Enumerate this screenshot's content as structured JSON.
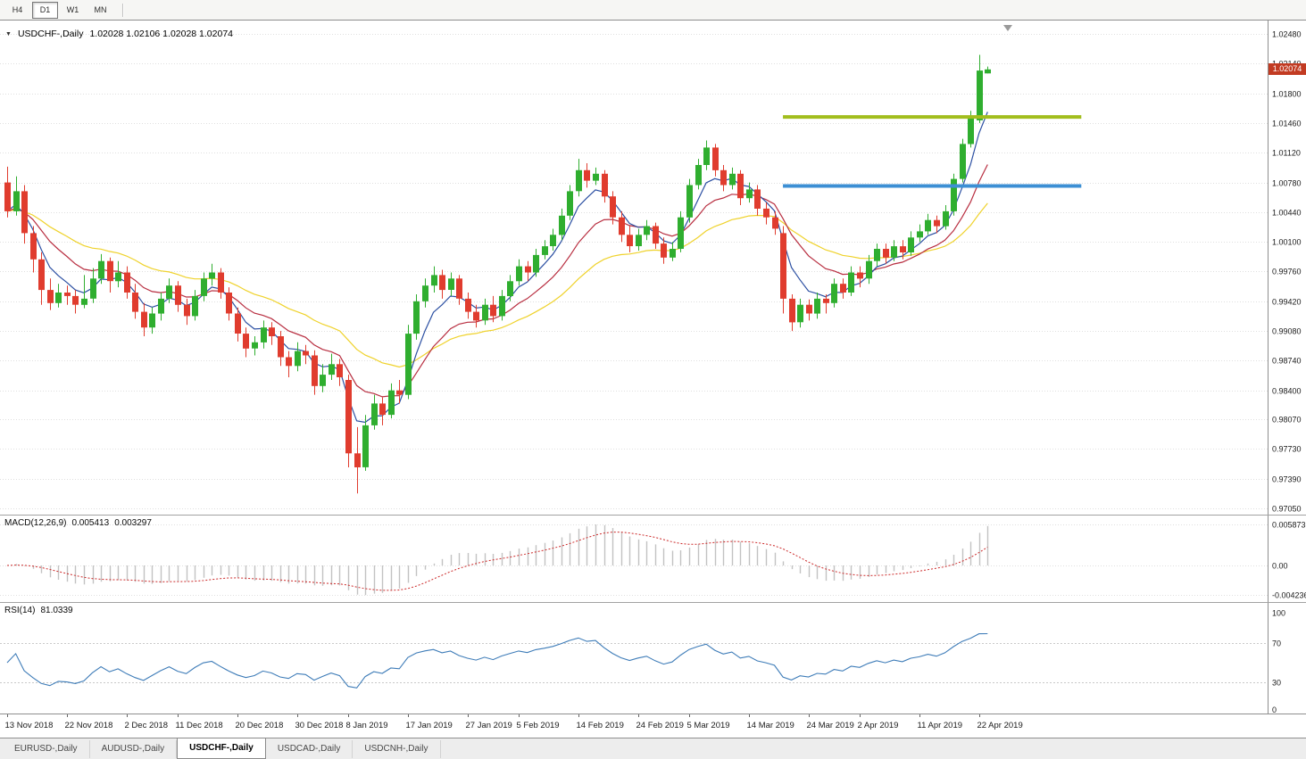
{
  "toolbar": {
    "timeframes": [
      {
        "label": "H4",
        "active": false
      },
      {
        "label": "D1",
        "active": true
      },
      {
        "label": "W1",
        "active": false
      },
      {
        "label": "MN",
        "active": false
      }
    ]
  },
  "chart": {
    "symbol_title": "USDCHF-,Daily",
    "ohlc_text": "1.02028 1.02106 1.02028 1.02074",
    "price_tag": "1.02074"
  },
  "macd": {
    "label": "MACD(12,26,9)",
    "main_value": "0.005413",
    "signal_value": "0.003297",
    "axis": [
      "0.005873",
      "0.00",
      "-0.004236"
    ]
  },
  "rsi": {
    "label": "RSI(14)",
    "value": "81.0339",
    "axis": [
      "100",
      "70",
      "30",
      "0"
    ],
    "levels": [
      70,
      30
    ]
  },
  "tabs": [
    {
      "label": "EURUSD-,Daily",
      "active": false
    },
    {
      "label": "AUDUSD-,Daily",
      "active": false
    },
    {
      "label": "USDCHF-,Daily",
      "active": true
    },
    {
      "label": "USDCAD-,Daily",
      "active": false
    },
    {
      "label": "USDCNH-,Daily",
      "active": false
    }
  ],
  "palette": {
    "up_candle": "#2FAE2F",
    "down_candle": "#E03C2E",
    "grid": "#DFDFDF",
    "axis_text": "#1A1A1A",
    "macd_bar": "#C2C2C2",
    "macd_signal": "#CC2A2A",
    "rsi_line": "#3E7CB8",
    "price_tag_bg": "#C23B22"
  },
  "chart_data": {
    "type": "candlestick",
    "symbol": "USDCHF-",
    "timeframe": "Daily",
    "last_ohlc": {
      "open": 1.02028,
      "high": 1.02106,
      "low": 1.02028,
      "close": 1.02074
    },
    "price_axis_ticks": [
      "1.02480",
      "1.02140",
      "1.01800",
      "1.01460",
      "1.01120",
      "1.00780",
      "1.00440",
      "1.00100",
      "0.99760",
      "0.99420",
      "0.99080",
      "0.98740",
      "0.98400",
      "0.98070",
      "0.97730",
      "0.97390",
      "0.97050"
    ],
    "date_ticks": [
      [
        0,
        "13 Nov 2018"
      ],
      [
        7,
        "22 Nov 2018"
      ],
      [
        14,
        "2 Dec 2018"
      ],
      [
        20,
        "11 Dec 2018"
      ],
      [
        27,
        "20 Dec 2018"
      ],
      [
        34,
        "30 Dec 2018"
      ],
      [
        40,
        "8 Jan 2019"
      ],
      [
        47,
        "17 Jan 2019"
      ],
      [
        54,
        "27 Jan 2019"
      ],
      [
        60,
        "5 Feb 2019"
      ],
      [
        67,
        "14 Feb 2019"
      ],
      [
        74,
        "24 Feb 2019"
      ],
      [
        80,
        "5 Mar 2019"
      ],
      [
        87,
        "14 Mar 2019"
      ],
      [
        94,
        "24 Mar 2019"
      ],
      [
        100,
        "2 Apr 2019"
      ],
      [
        107,
        "11 Apr 2019"
      ],
      [
        114,
        "22 Apr 2019"
      ]
    ],
    "horizontal_lines": [
      {
        "name": "resistance-hline",
        "price": 1.0153,
        "color": "#A2BE1E",
        "from_index": 91,
        "to_index": 126
      },
      {
        "name": "support-hline",
        "price": 1.0074,
        "color": "#3C8FD4",
        "from_index": 91,
        "to_index": 126
      }
    ],
    "moving_averages": [
      {
        "period": 5,
        "type": "EMA",
        "color": "#2B4FA2"
      },
      {
        "period": 12,
        "type": "EMA",
        "color": "#B82E40"
      },
      {
        "period": 26,
        "type": "EMA",
        "color": "#EFD22B"
      }
    ],
    "candles": [
      [
        1.0078,
        1.0096,
        1.0038,
        1.0045
      ],
      [
        1.0045,
        1.0085,
        1.004,
        1.0068
      ],
      [
        1.0068,
        1.0075,
        1.0008,
        1.002
      ],
      [
        1.002,
        1.0028,
        0.9975,
        0.999
      ],
      [
        0.999,
        0.9998,
        0.9938,
        0.9955
      ],
      [
        0.9955,
        0.9968,
        0.9932,
        0.994
      ],
      [
        0.994,
        0.9962,
        0.9935,
        0.9952
      ],
      [
        0.9952,
        0.996,
        0.9938,
        0.9948
      ],
      [
        0.9948,
        0.9955,
        0.9928,
        0.9938
      ],
      [
        0.9938,
        0.9972,
        0.9934,
        0.9945
      ],
      [
        0.9945,
        0.998,
        0.994,
        0.9968
      ],
      [
        0.9968,
        0.9996,
        0.9962,
        0.9988
      ],
      [
        0.9988,
        0.9992,
        0.9952,
        0.9965
      ],
      [
        0.9965,
        0.9988,
        0.9958,
        0.9975
      ],
      [
        0.9975,
        0.9982,
        0.9945,
        0.9952
      ],
      [
        0.9952,
        0.9962,
        0.9922,
        0.993
      ],
      [
        0.993,
        0.994,
        0.9902,
        0.9912
      ],
      [
        0.9912,
        0.9935,
        0.9905,
        0.9928
      ],
      [
        0.9928,
        0.9952,
        0.992,
        0.9945
      ],
      [
        0.9945,
        0.9968,
        0.994,
        0.996
      ],
      [
        0.996,
        0.9965,
        0.993,
        0.9938
      ],
      [
        0.9938,
        0.9945,
        0.9915,
        0.9925
      ],
      [
        0.9925,
        0.9955,
        0.992,
        0.9948
      ],
      [
        0.9948,
        0.9975,
        0.9942,
        0.9968
      ],
      [
        0.9968,
        0.9985,
        0.996,
        0.9975
      ],
      [
        0.9975,
        0.998,
        0.9945,
        0.9952
      ],
      [
        0.9952,
        0.9958,
        0.992,
        0.9928
      ],
      [
        0.9928,
        0.9935,
        0.9896,
        0.9905
      ],
      [
        0.9905,
        0.9912,
        0.9878,
        0.9888
      ],
      [
        0.9888,
        0.9902,
        0.988,
        0.9895
      ],
      [
        0.9895,
        0.992,
        0.9888,
        0.9912
      ],
      [
        0.9912,
        0.9918,
        0.9892,
        0.9902
      ],
      [
        0.9902,
        0.9908,
        0.9868,
        0.9878
      ],
      [
        0.9878,
        0.9885,
        0.9855,
        0.9868
      ],
      [
        0.9868,
        0.9895,
        0.9862,
        0.9885
      ],
      [
        0.9885,
        0.9892,
        0.987,
        0.988
      ],
      [
        0.988,
        0.9886,
        0.9835,
        0.9845
      ],
      [
        0.9845,
        0.987,
        0.9838,
        0.9858
      ],
      [
        0.9858,
        0.9882,
        0.9852,
        0.987
      ],
      [
        0.987,
        0.9876,
        0.9845,
        0.9855
      ],
      [
        0.9852,
        0.9858,
        0.9752,
        0.9768
      ],
      [
        0.9768,
        0.9798,
        0.9722,
        0.9752
      ],
      [
        0.9752,
        0.9812,
        0.9748,
        0.98
      ],
      [
        0.98,
        0.9835,
        0.9795,
        0.9825
      ],
      [
        0.9825,
        0.9832,
        0.98,
        0.9812
      ],
      [
        0.9812,
        0.9848,
        0.9808,
        0.984
      ],
      [
        0.984,
        0.9852,
        0.9825,
        0.9835
      ],
      [
        0.9835,
        0.9915,
        0.983,
        0.9905
      ],
      [
        0.9905,
        0.995,
        0.9898,
        0.9942
      ],
      [
        0.9942,
        0.9968,
        0.9935,
        0.996
      ],
      [
        0.996,
        0.9982,
        0.9952,
        0.9972
      ],
      [
        0.9972,
        0.9978,
        0.9945,
        0.9955
      ],
      [
        0.9955,
        0.9975,
        0.9948,
        0.9968
      ],
      [
        0.9968,
        0.9972,
        0.9938,
        0.9945
      ],
      [
        0.9945,
        0.9952,
        0.9922,
        0.993
      ],
      [
        0.993,
        0.9938,
        0.9912,
        0.992
      ],
      [
        0.992,
        0.9945,
        0.9915,
        0.9938
      ],
      [
        0.9938,
        0.9948,
        0.9918,
        0.9925
      ],
      [
        0.9925,
        0.9955,
        0.992,
        0.9948
      ],
      [
        0.9948,
        0.9972,
        0.9942,
        0.9965
      ],
      [
        0.9965,
        0.999,
        0.996,
        0.9982
      ],
      [
        0.9982,
        0.9988,
        0.9965,
        0.9975
      ],
      [
        0.9975,
        1.0002,
        0.997,
        0.9995
      ],
      [
        0.9995,
        1.0012,
        0.999,
        1.0005
      ],
      [
        1.0005,
        1.0025,
        1.0,
        1.0018
      ],
      [
        1.0018,
        1.0048,
        1.0012,
        1.004
      ],
      [
        1.004,
        1.0075,
        1.0035,
        1.0068
      ],
      [
        1.0068,
        1.0105,
        1.0062,
        1.0092
      ],
      [
        1.0092,
        1.01,
        1.0072,
        1.008
      ],
      [
        1.008,
        1.0095,
        1.0075,
        1.0088
      ],
      [
        1.0088,
        1.0092,
        1.0055,
        1.0062
      ],
      [
        1.0062,
        1.0068,
        1.003,
        1.0038
      ],
      [
        1.0038,
        1.0045,
        1.001,
        1.0018
      ],
      [
        1.0018,
        1.0028,
        0.9998,
        1.0005
      ],
      [
        1.0005,
        1.0025,
        1.0,
        1.0018
      ],
      [
        1.0018,
        1.0035,
        1.0012,
        1.0028
      ],
      [
        1.0028,
        1.0032,
        1.0002,
        1.0008
      ],
      [
        1.0008,
        1.0015,
        0.9985,
        0.9992
      ],
      [
        0.9992,
        1.001,
        0.9988,
        1.0002
      ],
      [
        1.0002,
        1.0045,
        0.9998,
        1.0038
      ],
      [
        1.0038,
        1.0082,
        1.0032,
        1.0075
      ],
      [
        1.0075,
        1.0105,
        1.007,
        1.0098
      ],
      [
        1.0098,
        1.0126,
        1.0092,
        1.0118
      ],
      [
        1.0118,
        1.0122,
        1.0085,
        1.0092
      ],
      [
        1.0092,
        1.0098,
        1.0068,
        1.0075
      ],
      [
        1.0075,
        1.0095,
        1.007,
        1.0088
      ],
      [
        1.0088,
        1.0092,
        1.0052,
        1.006
      ],
      [
        1.006,
        1.0078,
        1.0055,
        1.007
      ],
      [
        1.007,
        1.0075,
        1.004,
        1.0048
      ],
      [
        1.0048,
        1.0055,
        1.003,
        1.0038
      ],
      [
        1.0038,
        1.0045,
        1.0018,
        1.0025
      ],
      [
        1.002,
        1.0028,
        0.9928,
        0.9945
      ],
      [
        0.9945,
        0.995,
        0.9908,
        0.9918
      ],
      [
        0.9918,
        0.9945,
        0.9912,
        0.9938
      ],
      [
        0.9938,
        0.9944,
        0.992,
        0.9928
      ],
      [
        0.9928,
        0.9952,
        0.9922,
        0.9945
      ],
      [
        0.9945,
        0.995,
        0.9928,
        0.994
      ],
      [
        0.994,
        0.9968,
        0.9935,
        0.9962
      ],
      [
        0.9962,
        0.9968,
        0.9945,
        0.9952
      ],
      [
        0.9952,
        0.9982,
        0.9948,
        0.9975
      ],
      [
        0.9975,
        0.9982,
        0.9958,
        0.9968
      ],
      [
        0.9968,
        0.9995,
        0.9962,
        0.9988
      ],
      [
        0.9988,
        1.0008,
        0.9982,
        1.0002
      ],
      [
        1.0002,
        1.0008,
        0.9985,
        0.9992
      ],
      [
        0.9992,
        1.0012,
        0.9988,
        1.0005
      ],
      [
        1.0005,
        1.0012,
        0.999,
        0.9998
      ],
      [
        0.9998,
        1.0022,
        0.9994,
        1.0015
      ],
      [
        1.0015,
        1.003,
        1.001,
        1.0022
      ],
      [
        1.0022,
        1.0042,
        1.0018,
        1.0035
      ],
      [
        1.0035,
        1.004,
        1.002,
        1.0028
      ],
      [
        1.0028,
        1.0052,
        1.0024,
        1.0045
      ],
      [
        1.0045,
        1.0088,
        1.004,
        1.0082
      ],
      [
        1.0082,
        1.0128,
        1.0078,
        1.0122
      ],
      [
        1.0122,
        1.016,
        1.0118,
        1.0152
      ],
      [
        1.0149,
        1.0224,
        1.0146,
        1.0206
      ],
      [
        1.02028,
        1.02106,
        1.02028,
        1.02074
      ]
    ]
  }
}
